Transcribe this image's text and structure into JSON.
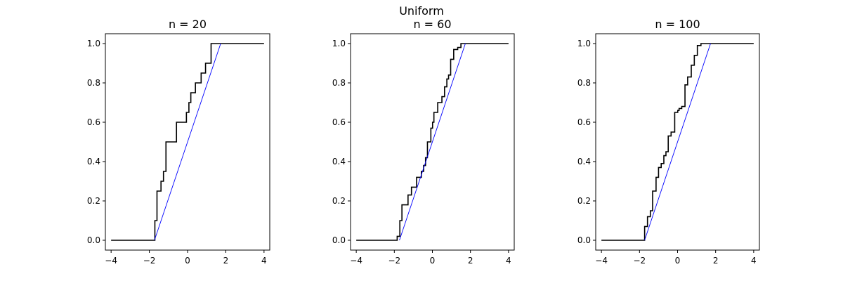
{
  "figure": {
    "suptitle": "Uniform"
  },
  "style": {
    "ecdf_color": "#000000",
    "cdf_color": "#0000ff",
    "background": "#ffffff"
  },
  "chart_data": [
    {
      "type": "line",
      "title": "n = 20",
      "xlim": [
        -4.3,
        4.3
      ],
      "ylim": [
        -0.05,
        1.05
      ],
      "xticks": [
        -4,
        -2,
        0,
        2,
        4
      ],
      "yticks": [
        0.0,
        0.2,
        0.4,
        0.6,
        0.8,
        1.0
      ],
      "xtick_labels": [
        "−4",
        "−2",
        "0",
        "2",
        "4"
      ],
      "ytick_labels": [
        "0.0",
        "0.2",
        "0.4",
        "0.6",
        "0.8",
        "1.0"
      ],
      "series": [
        {
          "kind": "empirical-cdf",
          "x": [
            -4,
            -1.71,
            -1.71,
            -1.6,
            -1.6,
            -1.39,
            -1.39,
            -1.26,
            -1.26,
            -1.13,
            -1.13,
            -0.58,
            -0.58,
            -0.06,
            -0.06,
            0.07,
            0.07,
            0.17,
            0.17,
            0.41,
            0.41,
            0.71,
            0.71,
            0.94,
            0.94,
            1.23,
            1.23,
            4
          ],
          "y": [
            0,
            0,
            0.1,
            0.1,
            0.25,
            0.25,
            0.3,
            0.3,
            0.35,
            0.35,
            0.5,
            0.5,
            0.6,
            0.6,
            0.65,
            0.65,
            0.7,
            0.7,
            0.75,
            0.75,
            0.8,
            0.8,
            0.85,
            0.85,
            0.9,
            0.9,
            1.0,
            1.0
          ]
        },
        {
          "kind": "theoretical-cdf",
          "x": [
            -1.732,
            1.732
          ],
          "y": [
            0,
            1
          ]
        }
      ]
    },
    {
      "type": "line",
      "title": "n = 60",
      "xlim": [
        -4.3,
        4.3
      ],
      "ylim": [
        -0.05,
        1.05
      ],
      "xticks": [
        -4,
        -2,
        0,
        2,
        4
      ],
      "yticks": [
        0.0,
        0.2,
        0.4,
        0.6,
        0.8,
        1.0
      ],
      "xtick_labels": [
        "−4",
        "−2",
        "0",
        "2",
        "4"
      ],
      "ytick_labels": [
        "0.0",
        "0.2",
        "0.4",
        "0.6",
        "0.8",
        "1.0"
      ],
      "series": [
        {
          "kind": "empirical-cdf",
          "x": [
            -4,
            -1.85,
            -1.85,
            -1.71,
            -1.71,
            -1.6,
            -1.6,
            -1.28,
            -1.28,
            -1.1,
            -1.1,
            -0.83,
            -0.83,
            -0.58,
            -0.58,
            -0.46,
            -0.46,
            -0.36,
            -0.36,
            -0.26,
            -0.26,
            -0.08,
            -0.08,
            0.01,
            0.01,
            0.08,
            0.08,
            0.16,
            0.16,
            0.28,
            0.28,
            0.5,
            0.5,
            0.64,
            0.64,
            0.76,
            0.76,
            0.85,
            0.85,
            0.96,
            0.96,
            1.12,
            1.12,
            1.33,
            1.33,
            1.5,
            1.5,
            1.63,
            1.63,
            4
          ],
          "y": [
            0,
            0,
            0.02,
            0.02,
            0.1,
            0.1,
            0.18,
            0.18,
            0.23,
            0.23,
            0.27,
            0.27,
            0.32,
            0.32,
            0.35,
            0.35,
            0.38,
            0.38,
            0.42,
            0.42,
            0.5,
            0.5,
            0.57,
            0.57,
            0.6,
            0.6,
            0.65,
            0.65,
            0.65,
            0.65,
            0.7,
            0.7,
            0.73,
            0.73,
            0.78,
            0.78,
            0.82,
            0.82,
            0.84,
            0.84,
            0.92,
            0.92,
            0.97,
            0.97,
            0.98,
            0.98,
            1.0,
            1.0,
            1.0,
            1.0
          ]
        },
        {
          "kind": "theoretical-cdf",
          "x": [
            -1.732,
            1.732
          ],
          "y": [
            0,
            1
          ]
        }
      ]
    },
    {
      "type": "line",
      "title": "n = 100",
      "xlim": [
        -4.3,
        4.3
      ],
      "ylim": [
        -0.05,
        1.05
      ],
      "xticks": [
        -4,
        -2,
        0,
        2,
        4
      ],
      "yticks": [
        0.0,
        0.2,
        0.4,
        0.6,
        0.8,
        1.0
      ],
      "xtick_labels": [
        "−4",
        "−2",
        "0",
        "2",
        "4"
      ],
      "ytick_labels": [
        "0.0",
        "0.2",
        "0.4",
        "0.6",
        "0.8",
        "1.0"
      ],
      "series": [
        {
          "kind": "empirical-cdf",
          "x": [
            -4,
            -1.73,
            -1.73,
            -1.58,
            -1.58,
            -1.43,
            -1.43,
            -1.31,
            -1.31,
            -1.13,
            -1.13,
            -1.0,
            -1.0,
            -0.86,
            -0.86,
            -0.72,
            -0.72,
            -0.61,
            -0.61,
            -0.49,
            -0.49,
            -0.34,
            -0.34,
            -0.15,
            -0.15,
            0.01,
            0.01,
            0.08,
            0.08,
            0.22,
            0.22,
            0.39,
            0.39,
            0.53,
            0.53,
            0.72,
            0.72,
            0.88,
            0.88,
            1.04,
            1.04,
            1.23,
            1.23,
            1.42,
            1.42,
            1.61,
            1.61,
            4
          ],
          "y": [
            0,
            0,
            0.07,
            0.07,
            0.12,
            0.12,
            0.15,
            0.15,
            0.25,
            0.25,
            0.32,
            0.32,
            0.37,
            0.37,
            0.39,
            0.39,
            0.43,
            0.43,
            0.45,
            0.45,
            0.53,
            0.53,
            0.55,
            0.55,
            0.65,
            0.65,
            0.66,
            0.66,
            0.67,
            0.67,
            0.68,
            0.68,
            0.79,
            0.79,
            0.83,
            0.83,
            0.89,
            0.89,
            0.94,
            0.94,
            0.99,
            0.99,
            1.0,
            1.0,
            1.0,
            1.0,
            1.0,
            1.0
          ]
        },
        {
          "kind": "theoretical-cdf",
          "x": [
            -1.732,
            1.732
          ],
          "y": [
            0,
            1
          ]
        }
      ]
    }
  ]
}
